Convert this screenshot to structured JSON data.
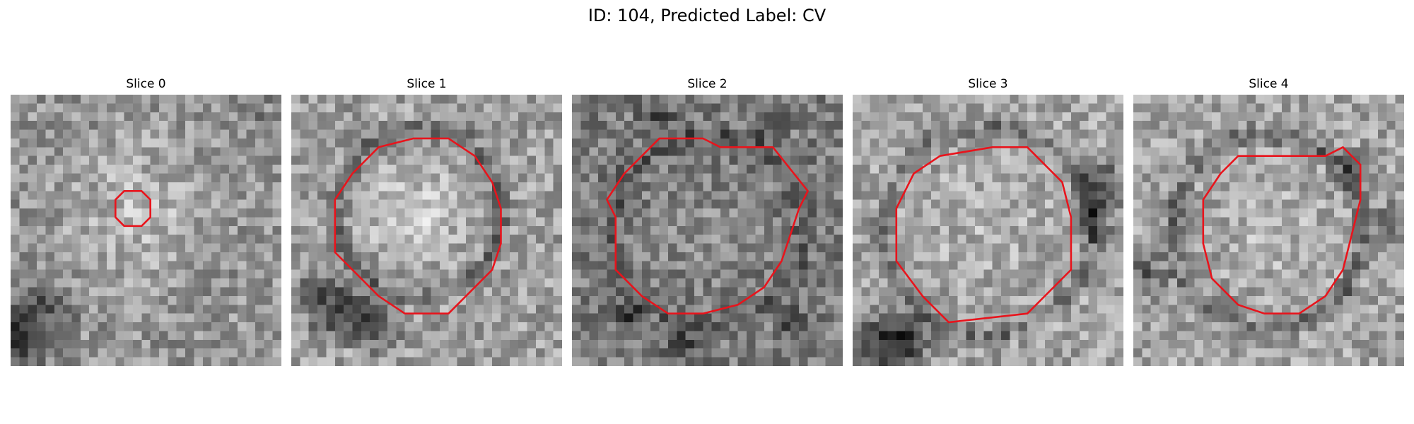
{
  "figure": {
    "title": "ID: 104, Predicted Label: CV"
  },
  "panels": [
    {
      "title": "Slice 0",
      "contour_color": "#e8141c"
    },
    {
      "title": "Slice 1",
      "contour_color": "#e8141c"
    },
    {
      "title": "Slice 2",
      "contour_color": "#e8141c"
    },
    {
      "title": "Slice 3",
      "contour_color": "#e8141c"
    },
    {
      "title": "Slice 4",
      "contour_color": "#e8141c"
    }
  ]
}
